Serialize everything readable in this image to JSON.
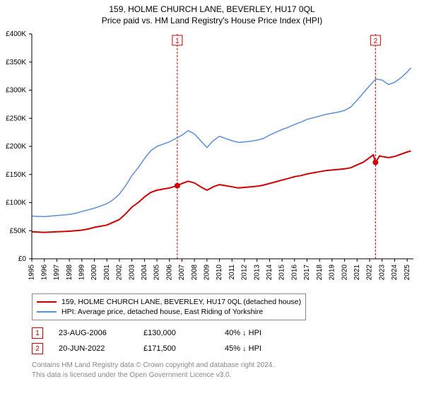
{
  "title": {
    "line1": "159, HOLME CHURCH LANE, BEVERLEY, HU17 0QL",
    "line2": "Price paid vs. HM Land Registry's House Price Index (HPI)"
  },
  "chart": {
    "type": "line",
    "background_color": "#ffffff",
    "plot_border_color": "#000000",
    "grid_on": false,
    "y_axis": {
      "min": 0,
      "max": 400000,
      "tick_step": 50000,
      "tick_labels": [
        "£0",
        "£50K",
        "£100K",
        "£150K",
        "£200K",
        "£250K",
        "£300K",
        "£350K",
        "£400K"
      ],
      "label_fontsize": 10,
      "label_color": "#000000"
    },
    "x_axis": {
      "year_min": 1995,
      "year_max": 2025.5,
      "tick_years": [
        1995,
        1996,
        1997,
        1998,
        1999,
        2000,
        2001,
        2002,
        2003,
        2004,
        2005,
        2006,
        2007,
        2008,
        2009,
        2010,
        2011,
        2012,
        2013,
        2014,
        2015,
        2016,
        2017,
        2018,
        2019,
        2020,
        2021,
        2022,
        2023,
        2024,
        2025
      ],
      "label_fontsize": 10,
      "label_color": "#000000",
      "label_rotation": -90
    },
    "series": [
      {
        "name": "price_paid",
        "label": "159, HOLME CHURCH LANE, BEVERLEY, HU17 0QL (detached house)",
        "color": "#d00000",
        "line_width": 2,
        "points": [
          [
            1995.0,
            48000
          ],
          [
            1996.0,
            47000
          ],
          [
            1997.0,
            48000
          ],
          [
            1998.0,
            49000
          ],
          [
            1998.5,
            50000
          ],
          [
            1999.0,
            51000
          ],
          [
            1999.5,
            53000
          ],
          [
            2000.0,
            56000
          ],
          [
            2000.5,
            58000
          ],
          [
            2001.0,
            60000
          ],
          [
            2001.5,
            65000
          ],
          [
            2002.0,
            70000
          ],
          [
            2002.5,
            80000
          ],
          [
            2003.0,
            92000
          ],
          [
            2003.5,
            100000
          ],
          [
            2004.0,
            110000
          ],
          [
            2004.5,
            118000
          ],
          [
            2005.0,
            122000
          ],
          [
            2005.5,
            124000
          ],
          [
            2006.0,
            126000
          ],
          [
            2006.63,
            130000
          ],
          [
            2007.0,
            134000
          ],
          [
            2007.5,
            138000
          ],
          [
            2008.0,
            135000
          ],
          [
            2008.5,
            128000
          ],
          [
            2009.0,
            122000
          ],
          [
            2009.5,
            128000
          ],
          [
            2010.0,
            132000
          ],
          [
            2010.5,
            130000
          ],
          [
            2011.0,
            128000
          ],
          [
            2011.5,
            126000
          ],
          [
            2012.0,
            127000
          ],
          [
            2012.5,
            128000
          ],
          [
            2013.0,
            129000
          ],
          [
            2013.5,
            131000
          ],
          [
            2014.0,
            134000
          ],
          [
            2014.5,
            137000
          ],
          [
            2015.0,
            140000
          ],
          [
            2015.5,
            143000
          ],
          [
            2016.0,
            146000
          ],
          [
            2016.5,
            148000
          ],
          [
            2017.0,
            151000
          ],
          [
            2017.5,
            153000
          ],
          [
            2018.0,
            155000
          ],
          [
            2018.5,
            157000
          ],
          [
            2019.0,
            158000
          ],
          [
            2019.5,
            159000
          ],
          [
            2020.0,
            160000
          ],
          [
            2020.5,
            162000
          ],
          [
            2021.0,
            167000
          ],
          [
            2021.5,
            172000
          ],
          [
            2022.0,
            180000
          ],
          [
            2022.3,
            185000
          ],
          [
            2022.47,
            171500
          ],
          [
            2022.8,
            183000
          ],
          [
            2023.0,
            182000
          ],
          [
            2023.5,
            180000
          ],
          [
            2024.0,
            182000
          ],
          [
            2024.5,
            186000
          ],
          [
            2025.0,
            190000
          ],
          [
            2025.3,
            192000
          ]
        ]
      },
      {
        "name": "hpi",
        "label": "HPI: Average price, detached house, East Riding of Yorkshire",
        "color": "#5b8fd6",
        "line_width": 1.5,
        "points": [
          [
            1995.0,
            76000
          ],
          [
            1996.0,
            75000
          ],
          [
            1997.0,
            77000
          ],
          [
            1998.0,
            79000
          ],
          [
            1998.5,
            81000
          ],
          [
            1999.0,
            84000
          ],
          [
            1999.5,
            87000
          ],
          [
            2000.0,
            90000
          ],
          [
            2000.5,
            94000
          ],
          [
            2001.0,
            98000
          ],
          [
            2001.5,
            105000
          ],
          [
            2002.0,
            115000
          ],
          [
            2002.5,
            130000
          ],
          [
            2003.0,
            148000
          ],
          [
            2003.5,
            162000
          ],
          [
            2004.0,
            178000
          ],
          [
            2004.5,
            192000
          ],
          [
            2005.0,
            200000
          ],
          [
            2005.5,
            204000
          ],
          [
            2006.0,
            208000
          ],
          [
            2006.5,
            214000
          ],
          [
            2007.0,
            220000
          ],
          [
            2007.5,
            228000
          ],
          [
            2008.0,
            222000
          ],
          [
            2008.5,
            210000
          ],
          [
            2009.0,
            198000
          ],
          [
            2009.5,
            210000
          ],
          [
            2010.0,
            218000
          ],
          [
            2010.5,
            214000
          ],
          [
            2011.0,
            210000
          ],
          [
            2011.5,
            207000
          ],
          [
            2012.0,
            208000
          ],
          [
            2012.5,
            209000
          ],
          [
            2013.0,
            211000
          ],
          [
            2013.5,
            214000
          ],
          [
            2014.0,
            220000
          ],
          [
            2014.5,
            225000
          ],
          [
            2015.0,
            230000
          ],
          [
            2015.5,
            234000
          ],
          [
            2016.0,
            239000
          ],
          [
            2016.5,
            243000
          ],
          [
            2017.0,
            248000
          ],
          [
            2017.5,
            251000
          ],
          [
            2018.0,
            254000
          ],
          [
            2018.5,
            257000
          ],
          [
            2019.0,
            259000
          ],
          [
            2019.5,
            261000
          ],
          [
            2020.0,
            264000
          ],
          [
            2020.5,
            270000
          ],
          [
            2021.0,
            282000
          ],
          [
            2021.5,
            295000
          ],
          [
            2022.0,
            308000
          ],
          [
            2022.5,
            320000
          ],
          [
            2023.0,
            318000
          ],
          [
            2023.5,
            310000
          ],
          [
            2024.0,
            314000
          ],
          [
            2024.5,
            322000
          ],
          [
            2025.0,
            332000
          ],
          [
            2025.3,
            340000
          ]
        ]
      }
    ],
    "sale_markers": [
      {
        "num": "1",
        "year": 2006.63,
        "price": 130000,
        "box_color": "#d00000",
        "line_color": "#d00000",
        "line_dash": "3,2"
      },
      {
        "num": "2",
        "year": 2022.47,
        "price": 171500,
        "box_color": "#d00000",
        "line_color": "#d00000",
        "line_dash": "3,2"
      }
    ]
  },
  "legend": {
    "border_color": "#888888",
    "items": [
      {
        "color": "#d00000",
        "label": "159, HOLME CHURCH LANE, BEVERLEY, HU17 0QL (detached house)"
      },
      {
        "color": "#5b8fd6",
        "label": "HPI: Average price, detached house, East Riding of Yorkshire"
      }
    ]
  },
  "marker_table": [
    {
      "num": "1",
      "date": "23-AUG-2006",
      "price": "£130,000",
      "delta": "40% ↓ HPI"
    },
    {
      "num": "2",
      "date": "20-JUN-2022",
      "price": "£171,500",
      "delta": "45% ↓ HPI"
    }
  ],
  "footer": {
    "line1": "Contains HM Land Registry data © Crown copyright and database right 2024.",
    "line2": "This data is licensed under the Open Government Licence v3.0."
  }
}
